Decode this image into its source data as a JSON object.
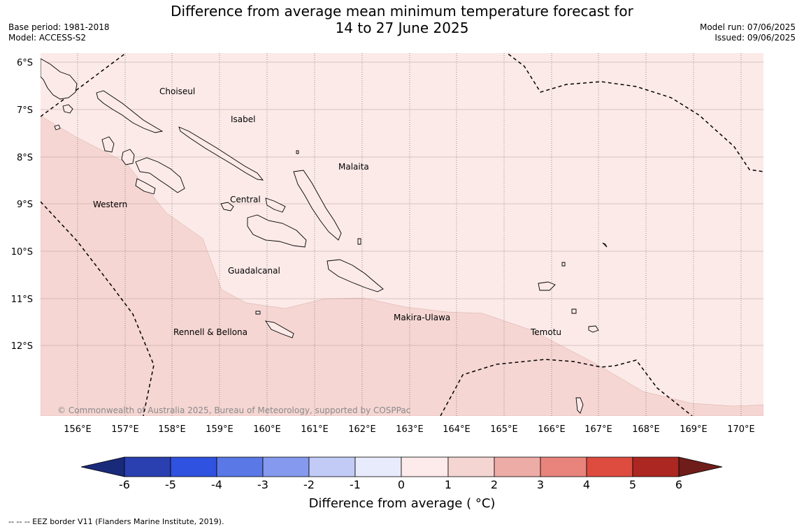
{
  "header": {
    "title_line1": "Difference from average mean minimum temperature forecast for",
    "title_line2": "14 to 27 June 2025",
    "base_period": "Base period: 1981-2018",
    "model": "Model: ACCESS-S2",
    "model_run": "Model run: 07/06/2025",
    "issued": "Issued: 09/06/2025"
  },
  "map": {
    "lon_ticks": [
      "156°E",
      "157°E",
      "158°E",
      "159°E",
      "160°E",
      "161°E",
      "162°E",
      "163°E",
      "164°E",
      "165°E",
      "166°E",
      "167°E",
      "168°E",
      "169°E",
      "170°E"
    ],
    "lat_ticks": [
      "6°S",
      "7°S",
      "8°S",
      "9°S",
      "10°S",
      "11°S",
      "12°S"
    ],
    "region_labels": [
      "Choiseul",
      "Isabel",
      "Malaita",
      "Western",
      "Central",
      "Guadalcanal",
      "Makira-Ulawa",
      "Rennell & Bellona",
      "Temotu"
    ],
    "copyright": "© Commonwealth of Australia 2025, Bureau of Meteorology, supported by COSPPac",
    "colors": {
      "anomaly_0_to_1": "#fbeae8",
      "anomaly_1_to_2": "#f5d6d3"
    }
  },
  "colorbar": {
    "ticks": [
      "-6",
      "-5",
      "-4",
      "-3",
      "-2",
      "-1",
      "0",
      "1",
      "2",
      "3",
      "4",
      "5",
      "6"
    ],
    "colors": [
      "#2a3fb0",
      "#3052e0",
      "#5a78e6",
      "#8599ee",
      "#c2cbf6",
      "#e8ebfc",
      "#fcebea",
      "#f5d5d2",
      "#eeaca7",
      "#e8847c",
      "#dd4c3f",
      "#ac2721"
    ],
    "extend_low_color": "#1a2a7a",
    "extend_high_color": "#6e1d1a",
    "title": "Difference from average ( °C)"
  },
  "footer": {
    "legend_note": "-- -- -- EEZ border V11 (Flanders Marine Institute, 2019)."
  }
}
